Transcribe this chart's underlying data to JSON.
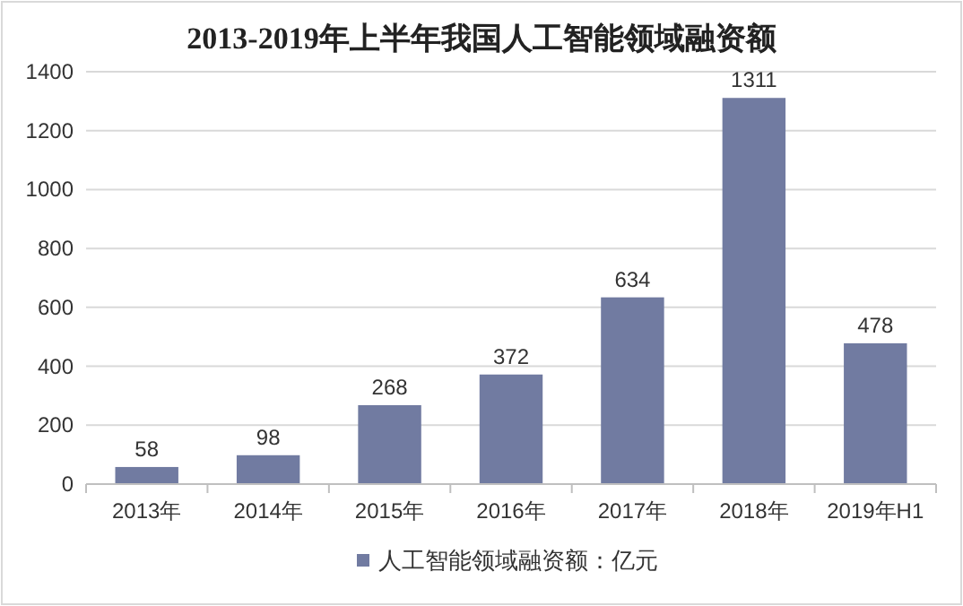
{
  "chart_data": {
    "type": "bar",
    "title": "2013-2019年上半年我国人工智能领域融资额",
    "categories": [
      "2013年",
      "2014年",
      "2015年",
      "2016年",
      "2017年",
      "2018年",
      "2019年H1"
    ],
    "series": [
      {
        "name": "人工智能领域融资额：亿元",
        "color": "#717ba1",
        "values": [
          58,
          98,
          268,
          372,
          634,
          1311,
          478
        ]
      }
    ],
    "ylim": [
      0,
      1400
    ],
    "yticks": [
      0,
      200,
      400,
      600,
      800,
      1000,
      1200,
      1400
    ],
    "grid": "y",
    "data_labels": true,
    "legend": "bottom"
  }
}
